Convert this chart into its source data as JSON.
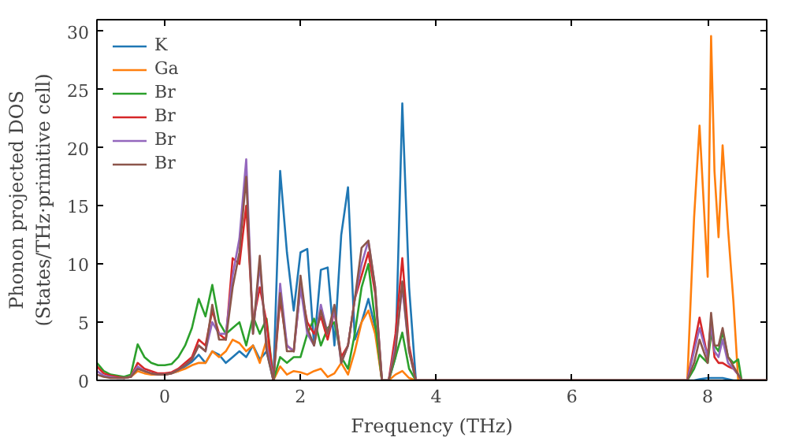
{
  "chart_data": {
    "type": "line",
    "xlabel": "Frequency (THz)",
    "ylabel": "Phonon projected DOS\n(States/THz·primitive cell)",
    "x": [
      -1.0,
      -0.9,
      -0.8,
      -0.7,
      -0.6,
      -0.5,
      -0.4,
      -0.3,
      -0.2,
      -0.1,
      0.0,
      0.1,
      0.2,
      0.3,
      0.4,
      0.5,
      0.6,
      0.7,
      0.8,
      0.9,
      1.0,
      1.1,
      1.2,
      1.3,
      1.4,
      1.5,
      1.6,
      1.7,
      1.8,
      1.9,
      2.0,
      2.1,
      2.2,
      2.3,
      2.4,
      2.5,
      2.6,
      2.7,
      2.8,
      2.9,
      3.0,
      3.1,
      3.2,
      3.3,
      3.4,
      3.5,
      3.6,
      3.7,
      7.7,
      7.8,
      7.88,
      8.0,
      8.05,
      8.1,
      8.16,
      8.22,
      8.3,
      8.38,
      8.45,
      8.5,
      8.87
    ],
    "series": [
      {
        "name": "K",
        "color": "#1f77b4",
        "values": [
          null,
          null,
          null,
          null,
          null,
          null,
          null,
          null,
          null,
          null,
          null,
          0.6,
          0.8,
          1.2,
          1.6,
          2.2,
          1.5,
          2.5,
          2.2,
          1.5,
          2.0,
          2.5,
          2.0,
          3.0,
          1.8,
          2.5,
          0,
          18,
          11,
          6,
          11,
          11.3,
          3,
          9.5,
          9.7,
          3,
          12.5,
          16.6,
          3.5,
          5,
          7,
          4.5,
          0,
          0,
          2,
          23.8,
          8,
          0,
          0,
          0,
          0.1,
          0.2,
          0.2,
          0.2,
          0.2,
          0.2,
          0.1,
          0,
          0,
          0,
          0
        ]
      },
      {
        "name": "Ga",
        "color": "#ff7f0e",
        "values": [
          null,
          null,
          null,
          null,
          0.2,
          0.3,
          0.8,
          0.6,
          0.5,
          0.5,
          0.5,
          0.6,
          0.8,
          1.0,
          1.3,
          1.5,
          1.5,
          2.5,
          2.0,
          2.5,
          3.5,
          3.2,
          2.5,
          3.0,
          1.5,
          3.5,
          0,
          1.2,
          0.5,
          0.8,
          0.7,
          0.5,
          0.8,
          1.0,
          0.3,
          0.6,
          1.5,
          0.5,
          2.5,
          5,
          6,
          4,
          0,
          0,
          0.5,
          0.8,
          0.2,
          0,
          0,
          14,
          21.9,
          8.9,
          29.6,
          18,
          12.3,
          20.2,
          13,
          6.7,
          0,
          0,
          0
        ]
      },
      {
        "name": "Br",
        "color": "#2ca02c",
        "values": [
          1.5,
          0.8,
          0.5,
          0.4,
          0.3,
          0.5,
          3.1,
          2.0,
          1.5,
          1.3,
          1.3,
          1.4,
          2.0,
          3.0,
          4.5,
          7,
          5.5,
          8.2,
          5,
          4,
          4.5,
          5,
          3,
          5.5,
          4,
          5.3,
          0,
          2,
          1.5,
          2,
          2,
          4,
          5.3,
          3,
          4.5,
          5,
          2,
          1,
          4,
          8,
          10,
          5,
          0,
          0,
          2,
          4.1,
          1,
          0,
          0,
          1,
          2.2,
          1.5,
          4,
          3,
          2.5,
          4.2,
          2,
          1.5,
          1.8,
          0,
          0
        ]
      },
      {
        "name": "Br",
        "color": "#d62728",
        "values": [
          1.2,
          0.6,
          0.4,
          0.3,
          0.2,
          0.3,
          1.5,
          1.0,
          0.8,
          0.6,
          0.6,
          0.7,
          1.0,
          1.5,
          2.0,
          3.5,
          3.0,
          6,
          4,
          3.5,
          10.5,
          10,
          15,
          5,
          8,
          5,
          0,
          7,
          3,
          2.5,
          8,
          5,
          4,
          5.5,
          3.5,
          6,
          2,
          3,
          7,
          9,
          11,
          7.5,
          0,
          0,
          4,
          10.5,
          3,
          0,
          0,
          3,
          5.4,
          2,
          5,
          2,
          1.5,
          1.5,
          1.2,
          1,
          0.5,
          0,
          0
        ]
      },
      {
        "name": "Br",
        "color": "#9467bd",
        "values": [
          0.8,
          0.4,
          0.3,
          0.2,
          0.2,
          0.3,
          1.2,
          0.8,
          0.6,
          0.5,
          0.5,
          0.6,
          0.9,
          1.3,
          1.8,
          3,
          2.5,
          5,
          4,
          4,
          9,
          12.2,
          19,
          4,
          10,
          3,
          0,
          8.3,
          3,
          2.5,
          8,
          4,
          3,
          6.5,
          4,
          6,
          1.5,
          3,
          7,
          10,
          12,
          8,
          0,
          0,
          3,
          8,
          2.5,
          0,
          0,
          2.5,
          4.5,
          2,
          4.8,
          2.5,
          2,
          3.5,
          1.5,
          1,
          0.5,
          0,
          0
        ]
      },
      {
        "name": "Br",
        "color": "#8c564b",
        "values": [
          0.5,
          0.3,
          0.2,
          0.2,
          0.2,
          0.3,
          1.0,
          0.8,
          0.6,
          0.5,
          0.5,
          0.6,
          0.9,
          1.3,
          1.8,
          3,
          2.5,
          6.5,
          3.5,
          3.5,
          8,
          11,
          17.5,
          4,
          10.7,
          2.5,
          0,
          7.5,
          2.5,
          2.5,
          9,
          4.5,
          3,
          6,
          4,
          6.5,
          1.5,
          3,
          7,
          11.4,
          12,
          8,
          0,
          0,
          2.5,
          8.5,
          2.5,
          0,
          0,
          1.5,
          3.5,
          1.5,
          5.8,
          3,
          3,
          4.5,
          2,
          1.2,
          0.5,
          0,
          0
        ]
      }
    ],
    "xlim": [
      -1,
      8.87
    ],
    "ylim": [
      0,
      31
    ],
    "xticks": [
      0,
      2,
      4,
      6,
      8
    ],
    "yticks": [
      0,
      5,
      10,
      15,
      20,
      25,
      30
    ],
    "legend": "top left",
    "grid": false,
    "marker": "none",
    "line_style": "solid"
  }
}
